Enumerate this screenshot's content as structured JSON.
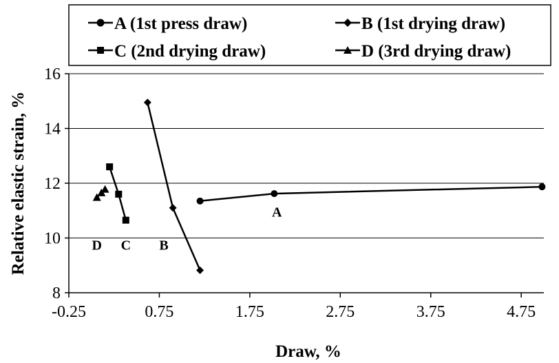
{
  "chart_data": {
    "type": "line",
    "xlabel": "Draw, %",
    "ylabel": "Relative elastic strain, %",
    "xlim": [
      -0.25,
      5.0
    ],
    "ylim": [
      8,
      16
    ],
    "x_ticks": [
      "-0.25",
      "0.75",
      "1.75",
      "2.75",
      "3.75",
      "4.75"
    ],
    "x_tick_values": [
      -0.25,
      0.75,
      1.75,
      2.75,
      3.75,
      4.75
    ],
    "y_ticks": [
      "8",
      "10",
      "12",
      "14",
      "16"
    ],
    "y_tick_values": [
      8,
      10,
      12,
      14,
      16
    ],
    "grid": "horizontal",
    "legend_position": "top",
    "series": [
      {
        "name": "A (1st press draw)",
        "marker": "circle",
        "x": [
          1.2,
          2.02,
          4.98
        ],
        "y": [
          11.35,
          11.62,
          11.87
        ]
      },
      {
        "name": "B (1st drying draw)",
        "marker": "diamond",
        "x": [
          0.62,
          0.9,
          1.2
        ],
        "y": [
          14.95,
          11.1,
          8.82
        ]
      },
      {
        "name": "C (2nd drying draw)",
        "marker": "square",
        "x": [
          0.2,
          0.3,
          0.38
        ],
        "y": [
          12.6,
          11.6,
          10.65
        ]
      },
      {
        "name": "D (3rd drying draw)",
        "marker": "triangle",
        "x": [
          0.06,
          0.11,
          0.15
        ],
        "y": [
          11.48,
          11.65,
          11.78
        ]
      }
    ],
    "annotations": [
      {
        "text": "A",
        "x": 2.05,
        "y": 10.95
      },
      {
        "text": "B",
        "x": 0.8,
        "y": 9.75
      },
      {
        "text": "C",
        "x": 0.38,
        "y": 9.75
      },
      {
        "text": "D",
        "x": 0.06,
        "y": 9.75
      }
    ]
  }
}
